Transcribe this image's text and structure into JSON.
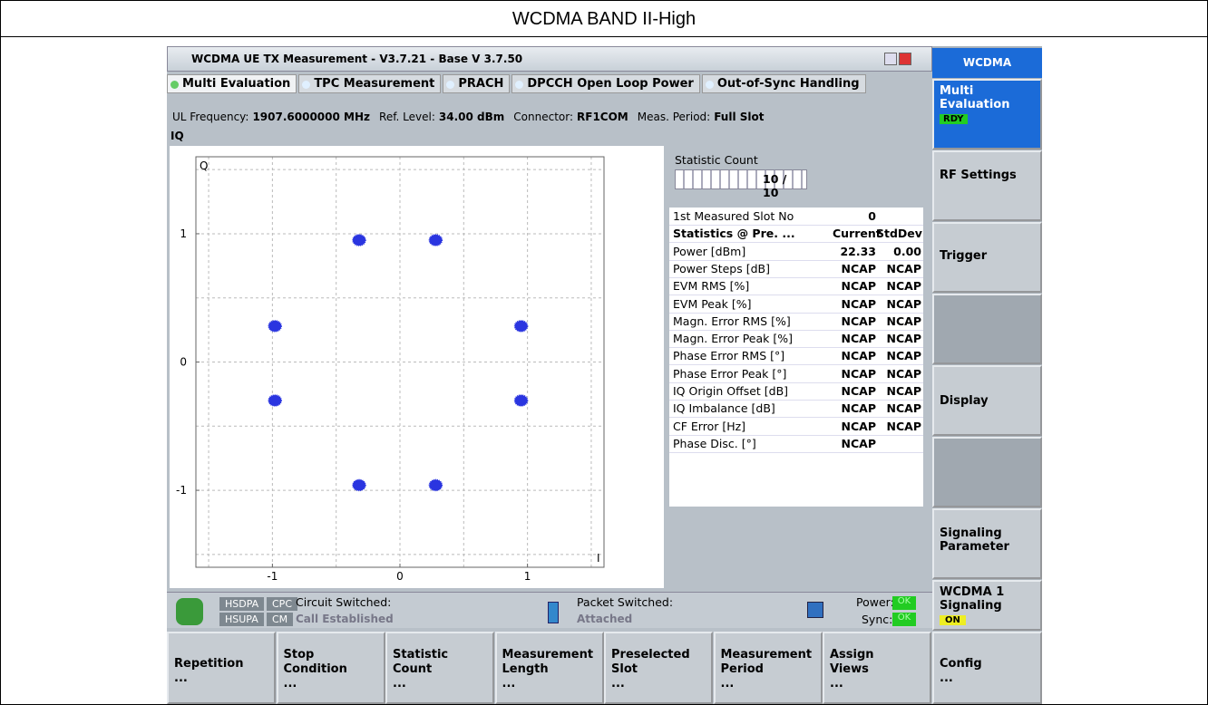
{
  "title": "WCDMA BAND II-High",
  "window": {
    "title": "WCDMA UE TX Measurement  - V3.7.21 - Base V 3.7.50",
    "tabs": [
      "Multi Evaluation",
      "TPC Measurement",
      "PRACH",
      "DPCCH Open Loop Power",
      "Out-of-Sync Handling"
    ],
    "info": [
      {
        "label": "UL Frequency:",
        "value": "1907.6000000 MHz"
      },
      {
        "label": "Ref. Level:",
        "value": "34.00 dBm"
      },
      {
        "label": "Connector:",
        "value": "RF1COM"
      },
      {
        "label": "Meas. Period:",
        "value": "Full Slot"
      }
    ],
    "view_label": "IQ"
  },
  "iq_plot": {
    "y_label": "Q",
    "x_label": "I",
    "xlim": [
      -1.6,
      1.6
    ],
    "ylim": [
      -1.6,
      1.6
    ],
    "xticks": [
      -1,
      0,
      1
    ],
    "yticks": [
      1,
      0,
      -1
    ],
    "grid": [
      -1.5,
      -1,
      -0.5,
      0,
      0.5,
      1,
      1.5
    ],
    "color": "#2a35e0",
    "clusters": [
      {
        "x": -0.32,
        "y": 0.95
      },
      {
        "x": 0.28,
        "y": 0.95
      },
      {
        "x": -0.98,
        "y": 0.28
      },
      {
        "x": 0.95,
        "y": 0.28
      },
      {
        "x": -0.98,
        "y": -0.3
      },
      {
        "x": 0.95,
        "y": -0.3
      },
      {
        "x": -0.32,
        "y": -0.96
      },
      {
        "x": 0.28,
        "y": -0.96
      }
    ]
  },
  "statistic": {
    "label": "Statistic Count",
    "value": "10 / 10"
  },
  "table": {
    "slot_row": [
      "1st Measured Slot No",
      "0"
    ],
    "header": [
      "Statistics @ Pre. ...",
      "Current",
      "StdDev"
    ],
    "rows": [
      [
        "Power [dBm]",
        "22.33",
        "0.00"
      ],
      [
        "Power Steps [dB]",
        "NCAP",
        "NCAP"
      ],
      [
        "EVM RMS [%]",
        "NCAP",
        "NCAP"
      ],
      [
        "EVM Peak [%]",
        "NCAP",
        "NCAP"
      ],
      [
        "Magn. Error RMS [%]",
        "NCAP",
        "NCAP"
      ],
      [
        "Magn. Error Peak [%]",
        "NCAP",
        "NCAP"
      ],
      [
        "Phase Error RMS [°]",
        "NCAP",
        "NCAP"
      ],
      [
        "Phase Error Peak [°]",
        "NCAP",
        "NCAP"
      ],
      [
        "IQ Origin Offset [dB]",
        "NCAP",
        "NCAP"
      ],
      [
        "IQ Imbalance [dB]",
        "NCAP",
        "NCAP"
      ],
      [
        "CF Error [Hz]",
        "NCAP",
        "NCAP"
      ],
      [
        "Phase Disc. [°]",
        "NCAP"
      ]
    ]
  },
  "status": {
    "hsdpa": "HSDPA",
    "cpc": "CPC",
    "circuit": "Circuit Switched:",
    "hsupa": "HSUPA",
    "cm": "CM",
    "circuit_state": "Call Established",
    "packet": "Packet Switched:",
    "packet_state": "Attached",
    "power": "Power:",
    "power_state": "OK",
    "sync": "Sync:",
    "sync_state": "OK"
  },
  "side_menu": {
    "header": "WCDMA",
    "multi": "Multi Evaluation",
    "multi_state": "RDY",
    "rf": "RF Settings",
    "trigger": "Trigger",
    "display": "Display",
    "signaling": "Signaling Parameter",
    "wcdma1": "WCDMA 1 Signaling",
    "wcdma1_state": "ON"
  },
  "softkeys": [
    "Repetition ...",
    "Stop Condition ...",
    "Statistic Count ...",
    "Measurement Length ...",
    "Preselected Slot ...",
    "Measurement Period ...",
    "Assign Views ...",
    "Config ..."
  ]
}
